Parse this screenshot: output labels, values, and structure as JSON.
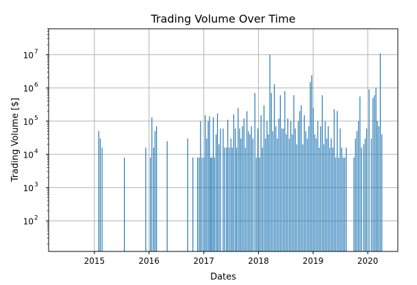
{
  "chart_data": {
    "type": "bar",
    "title": "Trading Volume Over Time",
    "xlabel": "Dates",
    "ylabel": "Trading Volume [$]",
    "y_scale": "log",
    "ylim": [
      12,
      60000000
    ],
    "xlim": [
      "2014-03-01",
      "2020-07-20"
    ],
    "grid": true,
    "bar_color": "#1f77b4",
    "x_ticks": [
      {
        "label": "2015",
        "date": "2015-01-01"
      },
      {
        "label": "2016",
        "date": "2016-01-01"
      },
      {
        "label": "2017",
        "date": "2017-01-01"
      },
      {
        "label": "2018",
        "date": "2018-01-01"
      },
      {
        "label": "2019",
        "date": "2019-01-01"
      },
      {
        "label": "2020",
        "date": "2020-01-01"
      }
    ],
    "y_ticks": [
      {
        "base": "10",
        "exp": "2",
        "value": 100
      },
      {
        "base": "10",
        "exp": "3",
        "value": 1000
      },
      {
        "base": "10",
        "exp": "4",
        "value": 10000
      },
      {
        "base": "10",
        "exp": "5",
        "value": 100000
      },
      {
        "base": "10",
        "exp": "6",
        "value": 1000000
      },
      {
        "base": "10",
        "exp": "7",
        "value": 10000000
      }
    ],
    "series": [
      {
        "points": [
          [
            "2015-01-30",
            50000
          ],
          [
            "2015-02-09",
            30000
          ],
          [
            "2015-02-21",
            16000
          ],
          [
            "2015-07-20",
            8000
          ],
          [
            "2015-12-10",
            16000
          ],
          [
            "2016-01-10",
            8000
          ],
          [
            "2016-01-20",
            130000
          ],
          [
            "2016-02-01",
            16000
          ],
          [
            "2016-02-10",
            50000
          ],
          [
            "2016-02-20",
            70000
          ],
          [
            "2016-05-01",
            25000
          ],
          [
            "2016-09-15",
            30000
          ],
          [
            "2016-10-20",
            8000
          ],
          [
            "2016-11-20",
            8000
          ],
          [
            "2016-12-01",
            8000
          ],
          [
            "2016-12-10",
            100000
          ],
          [
            "2016-12-20",
            8000
          ],
          [
            "2017-01-01",
            8000
          ],
          [
            "2017-01-10",
            150000
          ],
          [
            "2017-01-20",
            30000
          ],
          [
            "2017-01-30",
            100000
          ],
          [
            "2017-02-08",
            140000
          ],
          [
            "2017-02-16",
            8000
          ],
          [
            "2017-02-24",
            8000
          ],
          [
            "2017-03-05",
            130000
          ],
          [
            "2017-03-14",
            8000
          ],
          [
            "2017-03-24",
            40000
          ],
          [
            "2017-04-02",
            170000
          ],
          [
            "2017-04-12",
            20000
          ],
          [
            "2017-04-22",
            60000
          ],
          [
            "2017-05-10",
            60000
          ],
          [
            "2017-05-20",
            16000
          ],
          [
            "2017-06-01",
            16000
          ],
          [
            "2017-06-10",
            110000
          ],
          [
            "2017-06-20",
            16000
          ],
          [
            "2017-07-01",
            30000
          ],
          [
            "2017-07-10",
            16000
          ],
          [
            "2017-07-20",
            160000
          ],
          [
            "2017-07-30",
            60000
          ],
          [
            "2017-08-08",
            16000
          ],
          [
            "2017-08-18",
            250000
          ],
          [
            "2017-08-28",
            60000
          ],
          [
            "2017-09-06",
            30000
          ],
          [
            "2017-09-16",
            70000
          ],
          [
            "2017-09-26",
            120000
          ],
          [
            "2017-10-06",
            16000
          ],
          [
            "2017-10-16",
            200000
          ],
          [
            "2017-10-26",
            50000
          ],
          [
            "2017-11-05",
            40000
          ],
          [
            "2017-11-15",
            70000
          ],
          [
            "2017-11-25",
            30000
          ],
          [
            "2017-12-08",
            700000
          ],
          [
            "2017-12-18",
            8000
          ],
          [
            "2017-12-28",
            60000
          ],
          [
            "2018-01-08",
            8000
          ],
          [
            "2018-01-18",
            150000
          ],
          [
            "2018-01-28",
            16000
          ],
          [
            "2018-02-07",
            300000
          ],
          [
            "2018-02-17",
            30000
          ],
          [
            "2018-02-27",
            100000
          ],
          [
            "2018-03-08",
            40000
          ],
          [
            "2018-03-18",
            10000000
          ],
          [
            "2018-03-28",
            700000
          ],
          [
            "2018-04-07",
            50000
          ],
          [
            "2018-04-17",
            1300000
          ],
          [
            "2018-04-27",
            70000
          ],
          [
            "2018-05-07",
            30000
          ],
          [
            "2018-05-17",
            120000
          ],
          [
            "2018-05-27",
            600000
          ],
          [
            "2018-06-06",
            60000
          ],
          [
            "2018-06-16",
            60000
          ],
          [
            "2018-06-26",
            800000
          ],
          [
            "2018-07-06",
            40000
          ],
          [
            "2018-07-16",
            120000
          ],
          [
            "2018-07-26",
            30000
          ],
          [
            "2018-08-05",
            100000
          ],
          [
            "2018-08-15",
            40000
          ],
          [
            "2018-08-25",
            600000
          ],
          [
            "2018-09-04",
            60000
          ],
          [
            "2018-09-14",
            20000
          ],
          [
            "2018-09-24",
            100000
          ],
          [
            "2018-10-04",
            200000
          ],
          [
            "2018-10-14",
            300000
          ],
          [
            "2018-10-24",
            20000
          ],
          [
            "2018-11-03",
            150000
          ],
          [
            "2018-11-13",
            50000
          ],
          [
            "2018-11-23",
            30000
          ],
          [
            "2018-12-03",
            70000
          ],
          [
            "2018-12-13",
            1500000
          ],
          [
            "2018-12-23",
            2400000
          ],
          [
            "2019-01-02",
            250000
          ],
          [
            "2019-01-12",
            40000
          ],
          [
            "2019-01-22",
            30000
          ],
          [
            "2019-02-01",
            100000
          ],
          [
            "2019-02-11",
            16000
          ],
          [
            "2019-02-21",
            70000
          ],
          [
            "2019-03-03",
            600000
          ],
          [
            "2019-03-13",
            20000
          ],
          [
            "2019-03-23",
            100000
          ],
          [
            "2019-04-02",
            30000
          ],
          [
            "2019-04-12",
            70000
          ],
          [
            "2019-04-22",
            16000
          ],
          [
            "2019-05-02",
            30000
          ],
          [
            "2019-05-12",
            16000
          ],
          [
            "2019-05-22",
            230000
          ],
          [
            "2019-06-01",
            8000
          ],
          [
            "2019-06-11",
            200000
          ],
          [
            "2019-06-21",
            8000
          ],
          [
            "2019-07-01",
            60000
          ],
          [
            "2019-07-11",
            16000
          ],
          [
            "2019-07-21",
            8000
          ],
          [
            "2019-07-31",
            8000
          ],
          [
            "2019-08-10",
            16000
          ],
          [
            "2019-10-01",
            8000
          ],
          [
            "2019-10-11",
            30000
          ],
          [
            "2019-10-21",
            50000
          ],
          [
            "2019-10-31",
            100000
          ],
          [
            "2019-11-10",
            550000
          ],
          [
            "2019-11-20",
            16000
          ],
          [
            "2019-12-05",
            20000
          ],
          [
            "2019-12-15",
            30000
          ],
          [
            "2019-12-25",
            60000
          ],
          [
            "2020-01-10",
            900000
          ],
          [
            "2020-01-25",
            30000
          ],
          [
            "2020-02-05",
            500000
          ],
          [
            "2020-02-15",
            600000
          ],
          [
            "2020-02-25",
            1000000
          ],
          [
            "2020-03-05",
            100000
          ],
          [
            "2020-03-15",
            70000
          ],
          [
            "2020-03-25",
            11000000
          ],
          [
            "2020-04-04",
            40000
          ]
        ]
      }
    ]
  }
}
